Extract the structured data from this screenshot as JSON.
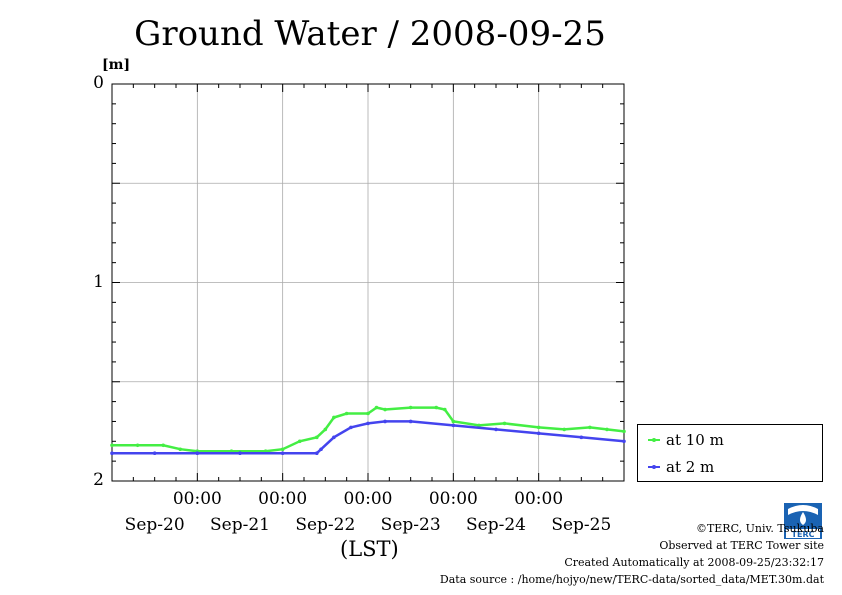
{
  "chart_data": {
    "type": "line",
    "title": "Ground Water / 2008-09-25",
    "ylabel": "[m]",
    "xlabel": "(LST)",
    "ylim": [
      0,
      2
    ],
    "y_inverted": true,
    "y_ticks": [
      "0",
      "1",
      "2"
    ],
    "x_time_labels": [
      "00:00",
      "00:00",
      "00:00",
      "00:00",
      "00:00"
    ],
    "x_date_labels": [
      "Sep-20",
      "Sep-21",
      "Sep-22",
      "Sep-23",
      "Sep-24",
      "Sep-25"
    ],
    "grid": true,
    "legend_position": "right",
    "x_unit": "day",
    "x_range": [
      0,
      6
    ],
    "series": [
      {
        "name": "at 10 m",
        "color": "#44ee44",
        "x": [
          0,
          0.3,
          0.6,
          0.8,
          1.0,
          1.4,
          1.8,
          2.0,
          2.2,
          2.4,
          2.5,
          2.6,
          2.75,
          3.0,
          3.1,
          3.2,
          3.5,
          3.8,
          3.9,
          4.0,
          4.3,
          4.6,
          5.0,
          5.3,
          5.6,
          5.8,
          6.0
        ],
        "values": [
          1.82,
          1.82,
          1.82,
          1.84,
          1.85,
          1.85,
          1.85,
          1.84,
          1.8,
          1.78,
          1.74,
          1.68,
          1.66,
          1.66,
          1.63,
          1.64,
          1.63,
          1.63,
          1.64,
          1.7,
          1.72,
          1.71,
          1.73,
          1.74,
          1.73,
          1.74,
          1.75
        ]
      },
      {
        "name": "at 2 m",
        "color": "#4444ee",
        "x": [
          0,
          0.5,
          1.0,
          1.5,
          2.0,
          2.4,
          2.45,
          2.6,
          2.8,
          3.0,
          3.2,
          3.5,
          4.0,
          4.5,
          5.0,
          5.5,
          6.0
        ],
        "values": [
          1.86,
          1.86,
          1.86,
          1.86,
          1.86,
          1.86,
          1.84,
          1.78,
          1.73,
          1.71,
          1.7,
          1.7,
          1.72,
          1.74,
          1.76,
          1.78,
          1.8
        ]
      }
    ]
  },
  "footer": {
    "copyright": "©TERC, Univ. Tsukuba",
    "observed": "Observed at TERC Tower site",
    "created": "Created Automatically at 2008-09-25/23:32:17",
    "source": "Data source : /home/hojyo/new/TERC-data/sorted_data/MET.30m.dat"
  },
  "logo": {
    "name": "terc-logo",
    "text": "TERC",
    "color": "#1a63b3"
  }
}
